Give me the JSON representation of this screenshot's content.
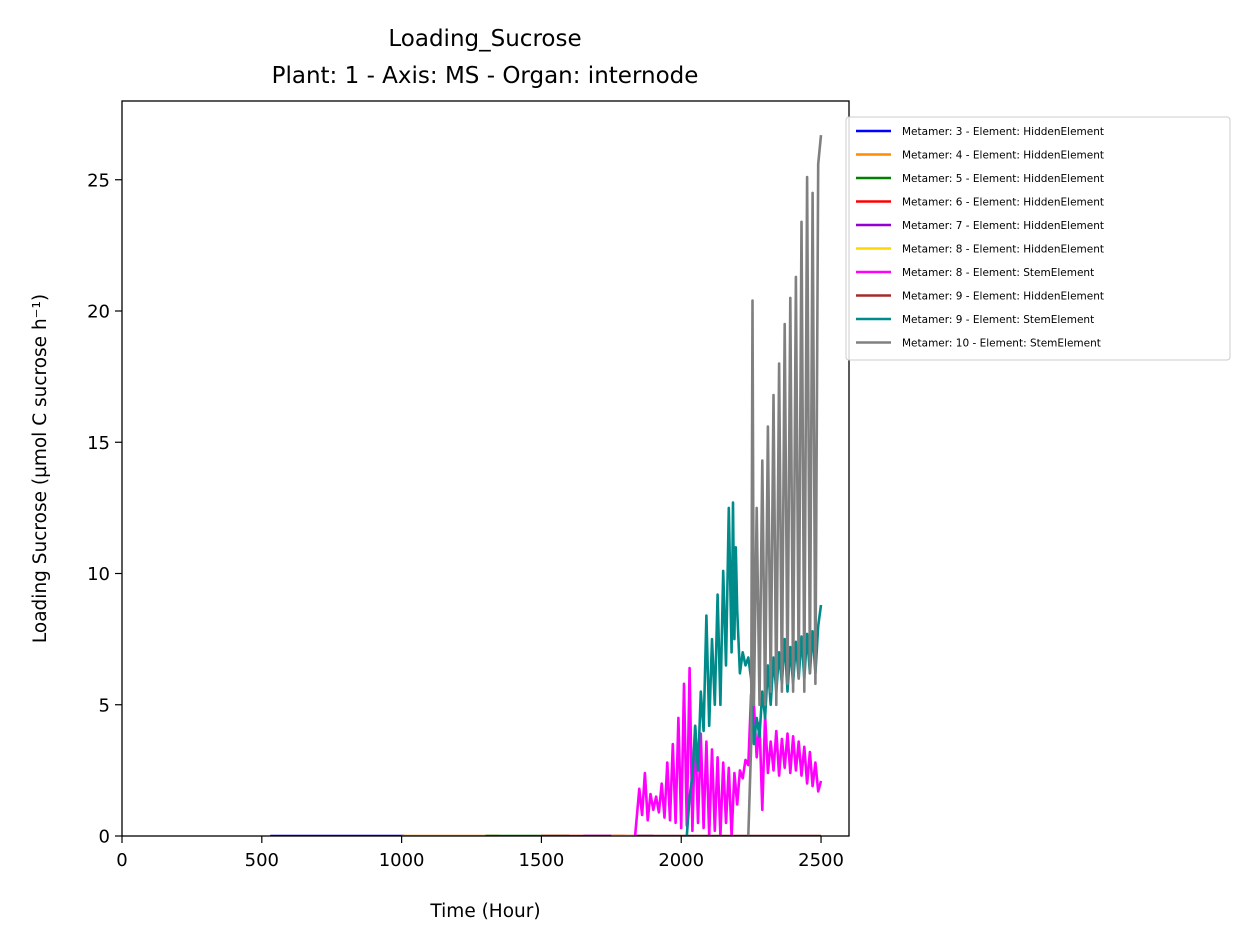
{
  "chart_data": {
    "type": "line",
    "title": "Loading_Sucrose",
    "subtitle": "Plant: 1 - Axis: MS - Organ: internode",
    "xlabel": "Time (Hour)",
    "ylabel": "Loading Sucrose (µmol C sucrose h⁻¹)",
    "xlim": [
      0,
      2600
    ],
    "ylim": [
      0,
      28
    ],
    "xticks": [
      0,
      500,
      1000,
      1500,
      2000,
      2500
    ],
    "yticks": [
      0,
      5,
      10,
      15,
      20,
      25
    ],
    "legend_position": "outside-right-top",
    "series": [
      {
        "name": "Metamer: 3 - Element: HiddenElement",
        "color": "#0000ff",
        "x": [
          530,
          1010
        ],
        "y": [
          0,
          0
        ]
      },
      {
        "name": "Metamer: 4 - Element: HiddenElement",
        "color": "#ff8c00",
        "x": [
          1000,
          1350
        ],
        "y": [
          0,
          0
        ]
      },
      {
        "name": "Metamer: 5 - Element: HiddenElement",
        "color": "#008000",
        "x": [
          1300,
          1600
        ],
        "y": [
          0,
          0
        ]
      },
      {
        "name": "Metamer: 6 - Element: HiddenElement",
        "color": "#ff0000",
        "x": [
          1500,
          1800
        ],
        "y": [
          0,
          0
        ]
      },
      {
        "name": "Metamer: 7 - Element: HiddenElement",
        "color": "#9400d3",
        "x": [
          1650,
          1900
        ],
        "y": [
          0,
          0
        ]
      },
      {
        "name": "Metamer: 8 - Element: HiddenElement",
        "color": "#ffd700",
        "x": [
          1750,
          1840
        ],
        "y": [
          0,
          0
        ]
      },
      {
        "name": "Metamer: 8 - Element: StemElement",
        "color": "#ff00ff",
        "x": [
          1835,
          1840,
          1850,
          1860,
          1870,
          1880,
          1890,
          1900,
          1910,
          1920,
          1930,
          1940,
          1950,
          1960,
          1970,
          1980,
          1990,
          2000,
          2010,
          2020,
          2030,
          2040,
          2050,
          2060,
          2070,
          2080,
          2090,
          2100,
          2110,
          2120,
          2130,
          2140,
          2150,
          2160,
          2170,
          2180,
          2190,
          2200,
          2210,
          2220,
          2230,
          2240,
          2250,
          2260,
          2270,
          2280,
          2290,
          2300,
          2310,
          2320,
          2330,
          2340,
          2350,
          2360,
          2370,
          2380,
          2390,
          2400,
          2410,
          2420,
          2430,
          2440,
          2450,
          2460,
          2470,
          2480,
          2490,
          2500
        ],
        "y": [
          0,
          0.6,
          1.8,
          0.8,
          2.4,
          0.6,
          1.6,
          1.0,
          1.5,
          0.9,
          2.0,
          0.7,
          2.8,
          0.6,
          3.5,
          0.5,
          4.5,
          0.3,
          5.8,
          0.4,
          6.4,
          0.2,
          4.2,
          0.5,
          3.9,
          0.3,
          3.6,
          0.0,
          3.3,
          0.2,
          3.0,
          0.0,
          2.8,
          0.5,
          2.6,
          0.0,
          2.4,
          1.2,
          2.5,
          2.2,
          2.9,
          2.7,
          5.4,
          5.0,
          3.0,
          4.3,
          1.0,
          4.6,
          2.4,
          3.6,
          2.5,
          4.0,
          2.3,
          3.7,
          2.6,
          3.9,
          2.4,
          3.8,
          2.5,
          3.6,
          2.3,
          3.4,
          2.0,
          3.2,
          1.9,
          2.8,
          1.7,
          2.1
        ]
      },
      {
        "name": "Metamer: 9 - Element: HiddenElement",
        "color": "#a52a2a",
        "x": [
          1840,
          2500
        ],
        "y": [
          0,
          0
        ]
      },
      {
        "name": "Metamer: 9 - Element: StemElement",
        "color": "#008b8b",
        "x": [
          2020,
          2030,
          2040,
          2050,
          2060,
          2070,
          2080,
          2090,
          2100,
          2110,
          2120,
          2130,
          2140,
          2150,
          2160,
          2170,
          2180,
          2185,
          2190,
          2195,
          2200,
          2210,
          2220,
          2230,
          2240,
          2250,
          2260,
          2270,
          2280,
          2290,
          2300,
          2310,
          2320,
          2330,
          2340,
          2350,
          2360,
          2370,
          2380,
          2390,
          2400,
          2410,
          2420,
          2430,
          2440,
          2450,
          2460,
          2470,
          2480,
          2490,
          2500
        ],
        "y": [
          0,
          1.5,
          2.3,
          4.2,
          2.5,
          5.5,
          4.0,
          8.4,
          4.2,
          7.5,
          5.0,
          9.2,
          5.0,
          10.1,
          6.5,
          12.5,
          7.0,
          12.7,
          7.5,
          11.0,
          8.6,
          6.2,
          7.0,
          6.5,
          6.8,
          6.0,
          3.5,
          4.5,
          3.8,
          5.5,
          4.5,
          6.5,
          5.0,
          6.8,
          5.5,
          7.0,
          5.8,
          7.5,
          5.5,
          7.2,
          5.8,
          7.4,
          6.0,
          7.6,
          6.0,
          7.7,
          6.2,
          7.8,
          6.2,
          8.0,
          8.8
        ]
      },
      {
        "name": "Metamer: 10 - Element: StemElement",
        "color": "#808080",
        "x": [
          2240,
          2250,
          2255,
          2260,
          2270,
          2280,
          2290,
          2300,
          2310,
          2320,
          2330,
          2340,
          2350,
          2360,
          2370,
          2380,
          2390,
          2400,
          2410,
          2420,
          2430,
          2440,
          2450,
          2460,
          2470,
          2480,
          2490,
          2500
        ],
        "y": [
          0,
          3.4,
          20.4,
          5.0,
          12.5,
          5.0,
          14.3,
          5.0,
          15.6,
          5.5,
          16.8,
          5.0,
          18.0,
          5.5,
          19.5,
          5.8,
          20.5,
          5.5,
          21.3,
          6.0,
          23.4,
          5.5,
          25.1,
          6.2,
          24.5,
          5.8,
          25.6,
          26.7
        ]
      }
    ]
  }
}
